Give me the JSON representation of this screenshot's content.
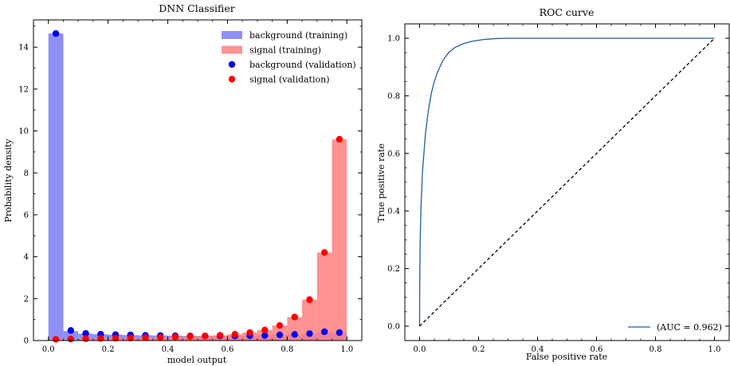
{
  "chart_data": [
    {
      "type": "bar",
      "title": "DNN Classifier",
      "xlabel": "model output",
      "ylabel": "Probability density",
      "xlim": [
        -0.05,
        1.05
      ],
      "ylim": [
        0,
        15.3
      ],
      "xticks": [
        "0.0",
        "0.2",
        "0.4",
        "0.6",
        "0.8",
        "1.0"
      ],
      "xtick_values": [
        0.0,
        0.2,
        0.4,
        0.6,
        0.8,
        1.0
      ],
      "yticks": [
        "0",
        "2",
        "4",
        "6",
        "8",
        "10",
        "12",
        "14"
      ],
      "ytick_values": [
        0,
        2,
        4,
        6,
        8,
        10,
        12,
        14
      ],
      "bin_width": 0.05,
      "bin_centers": [
        0.025,
        0.075,
        0.125,
        0.175,
        0.225,
        0.275,
        0.325,
        0.375,
        0.425,
        0.475,
        0.525,
        0.575,
        0.625,
        0.675,
        0.725,
        0.775,
        0.825,
        0.875,
        0.925,
        0.975
      ],
      "series": [
        {
          "name": "background (training)",
          "kind": "histogram",
          "color": "#7b7bf7",
          "values": [
            14.65,
            0.45,
            0.33,
            0.3,
            0.28,
            0.26,
            0.25,
            0.24,
            0.23,
            0.22,
            0.22,
            0.22,
            0.22,
            0.23,
            0.24,
            0.26,
            0.28,
            0.32,
            0.4,
            0.37
          ]
        },
        {
          "name": "signal (training)",
          "kind": "histogram",
          "color": "#ff7f7f",
          "values": [
            0.08,
            0.08,
            0.09,
            0.1,
            0.11,
            0.12,
            0.13,
            0.15,
            0.17,
            0.19,
            0.22,
            0.25,
            0.3,
            0.38,
            0.5,
            0.72,
            1.12,
            1.95,
            4.2,
            9.6
          ]
        },
        {
          "name": "background (validation)",
          "kind": "points",
          "color": "#0000ee",
          "values": [
            14.65,
            0.48,
            0.34,
            0.3,
            0.28,
            0.27,
            0.25,
            0.24,
            0.23,
            0.22,
            0.22,
            0.22,
            0.22,
            0.23,
            0.24,
            0.27,
            0.29,
            0.33,
            0.42,
            0.38
          ]
        },
        {
          "name": "signal (validation)",
          "kind": "points",
          "color": "#ff0000",
          "values": [
            0.06,
            0.07,
            0.09,
            0.1,
            0.11,
            0.12,
            0.14,
            0.16,
            0.18,
            0.2,
            0.22,
            0.25,
            0.3,
            0.38,
            0.5,
            0.72,
            1.12,
            1.95,
            4.2,
            9.6
          ]
        }
      ],
      "legend": "top-right",
      "grid": false
    },
    {
      "type": "line",
      "title": "ROC curve",
      "xlabel": "False positive rate",
      "ylabel": "True positive rate",
      "xlim": [
        -0.05,
        1.05
      ],
      "ylim": [
        -0.05,
        1.05
      ],
      "xticks": [
        "0.0",
        "0.2",
        "0.4",
        "0.6",
        "0.8",
        "1.0"
      ],
      "xtick_values": [
        0.0,
        0.2,
        0.4,
        0.6,
        0.8,
        1.0
      ],
      "yticks": [
        "0.0",
        "0.2",
        "0.4",
        "0.6",
        "0.8",
        "1.0"
      ],
      "ytick_values": [
        0.0,
        0.2,
        0.4,
        0.6,
        0.8,
        1.0
      ],
      "series": [
        {
          "name": "(AUC = 0.962)",
          "color": "#1f5fa0",
          "x": [
            0,
            0.0005,
            0.002,
            0.005,
            0.01,
            0.02,
            0.03,
            0.04,
            0.05,
            0.06,
            0.08,
            0.1,
            0.12,
            0.15,
            0.18,
            0.22,
            0.26,
            0.3,
            0.4,
            0.6,
            0.8,
            1.0
          ],
          "y": [
            0,
            0.15,
            0.3,
            0.42,
            0.54,
            0.67,
            0.75,
            0.81,
            0.85,
            0.88,
            0.925,
            0.952,
            0.968,
            0.982,
            0.99,
            0.996,
            0.999,
            1.0,
            1.0,
            1.0,
            1.0,
            1.0
          ]
        },
        {
          "name": "",
          "style": "dashed",
          "color": "#000000",
          "x": [
            0,
            1
          ],
          "y": [
            0,
            1
          ]
        }
      ],
      "legend": "bottom-right",
      "grid": false
    }
  ]
}
